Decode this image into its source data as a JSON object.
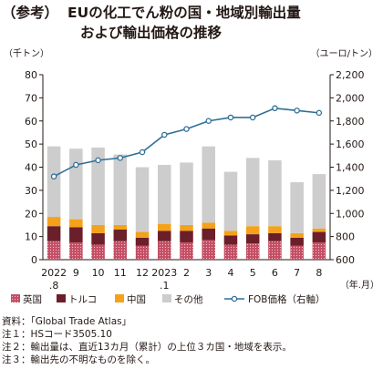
{
  "title": {
    "prefix": "（参考）",
    "line1": "EUの化工でん粉の国・地域別輸出量",
    "line2": "および輸出価格の推移"
  },
  "chart_data": {
    "type": "bar",
    "stacked": true,
    "categories": [
      "2022",
      "9",
      "10",
      "11",
      "12",
      "2023",
      "2",
      "3",
      "4",
      "5",
      "6",
      "7",
      "8"
    ],
    "category_sublabels": [
      ".8",
      "",
      "",
      "",
      "",
      ".1",
      "",
      "",
      "",
      "",
      "",
      "",
      ""
    ],
    "x_unit": "（年.月）",
    "left_axis": {
      "unit": "（千トン）",
      "ylim": [
        0,
        80
      ],
      "ticks": [
        0,
        10,
        20,
        30,
        40,
        50,
        60,
        70,
        80
      ]
    },
    "right_axis": {
      "unit": "（ユーロ/トン）",
      "ylim": [
        600,
        2200
      ],
      "ticks": [
        600,
        800,
        1000,
        1200,
        1400,
        1600,
        1800,
        2000,
        2200
      ]
    },
    "series": [
      {
        "name": "英国",
        "kind": "bar",
        "color": "#c44e64",
        "pattern": "dotted",
        "values": [
          8.0,
          7.5,
          6.5,
          8.0,
          6.0,
          8.0,
          7.5,
          8.5,
          6.5,
          7.0,
          8.0,
          6.0,
          7.5
        ]
      },
      {
        "name": "トルコ",
        "kind": "bar",
        "color": "#6b1f2a",
        "values": [
          6.5,
          6.5,
          5.0,
          5.0,
          3.5,
          4.5,
          5.0,
          5.0,
          4.0,
          4.0,
          3.5,
          3.5,
          4.5
        ]
      },
      {
        "name": "中国",
        "kind": "bar",
        "color": "#f5a21a",
        "values": [
          4.0,
          3.5,
          3.5,
          2.0,
          2.5,
          3.0,
          2.5,
          2.5,
          2.0,
          3.5,
          3.0,
          2.0,
          1.5
        ]
      },
      {
        "name": "その他",
        "kind": "bar",
        "color": "#cdcdcd",
        "values": [
          30.5,
          30.5,
          33.5,
          30.5,
          28.0,
          25.5,
          27.0,
          33.0,
          25.5,
          29.5,
          28.5,
          22.0,
          23.5
        ]
      },
      {
        "name": "FOB価格（右軸）",
        "kind": "line",
        "axis": "right",
        "color": "#2e6f96",
        "values": [
          1320,
          1420,
          1460,
          1480,
          1530,
          1680,
          1730,
          1800,
          1830,
          1830,
          1910,
          1890,
          1870
        ]
      }
    ],
    "grid": false,
    "legend_position": "bottom"
  },
  "notes": [
    "資料：「Global Trade Atlas」",
    "注１：HSコード3505.10",
    "注２：輸出量は、直近13カ月（累計）の上位３カ国・地域を表示。",
    "注３：輸出先の不明なものを除く。"
  ]
}
